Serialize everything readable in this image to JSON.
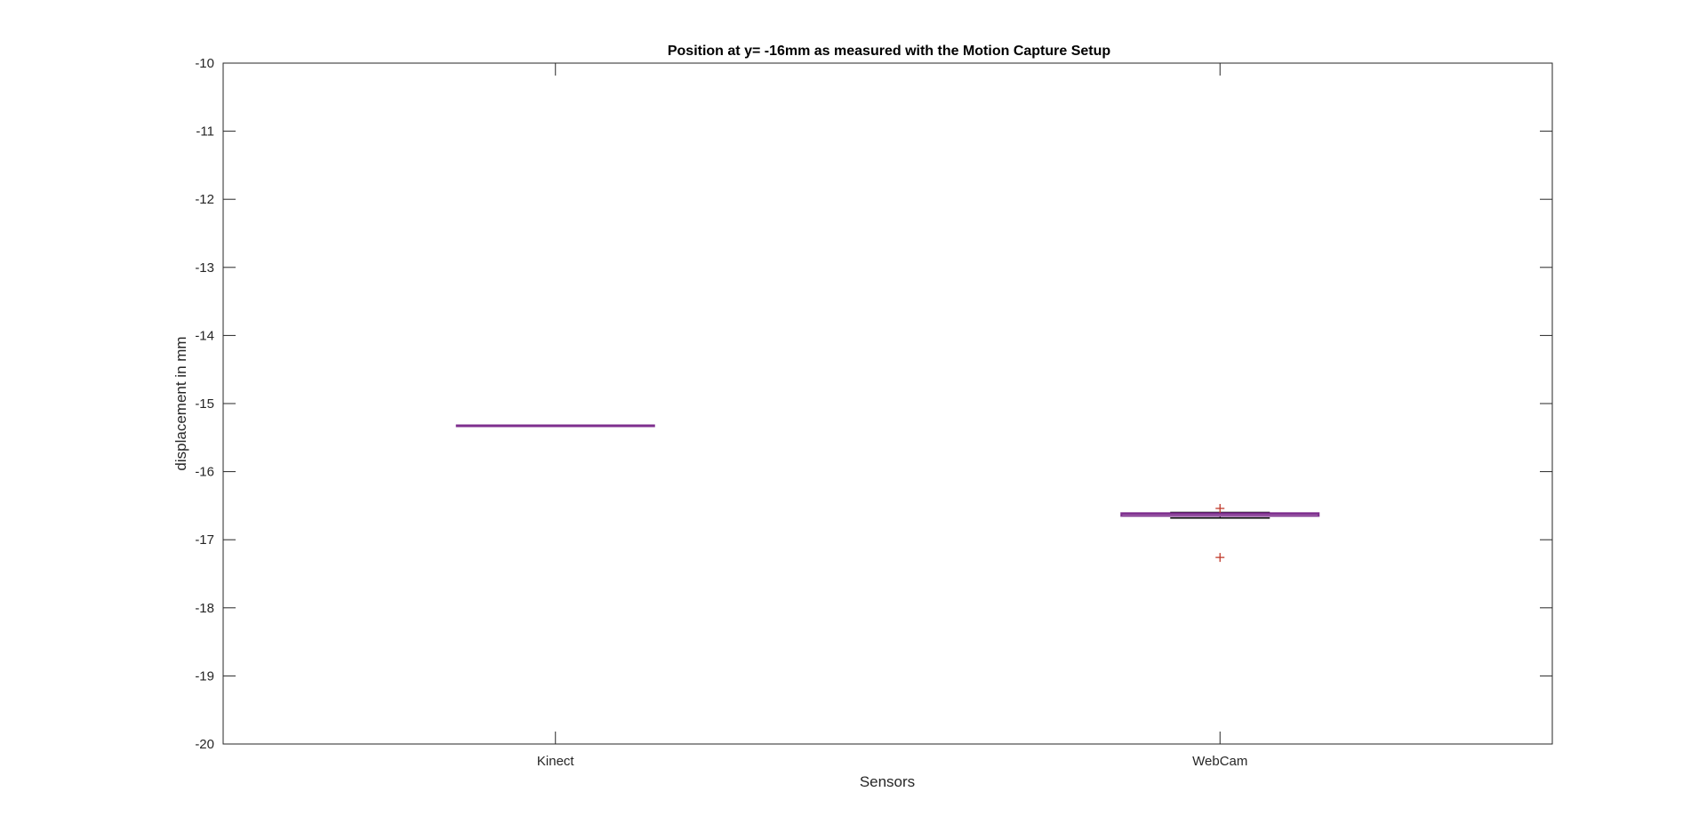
{
  "chart_data": {
    "type": "box",
    "title": "Position at y= -16mm as measured with the Motion Capture Setup",
    "xlabel": "Sensors",
    "ylabel": "displacement in mm",
    "categories": [
      "Kinect",
      "WebCam"
    ],
    "ylim": [
      -20,
      -10
    ],
    "yticks": [
      "-10",
      "-11",
      "-12",
      "-13",
      "-14",
      "-15",
      "-16",
      "-17",
      "-18",
      "-19",
      "-20"
    ],
    "boxes": [
      {
        "category": "Kinect",
        "whisker_low": -15.32,
        "q1": -15.32,
        "median": -15.32,
        "q3": -15.32,
        "whisker_high": -15.32,
        "outliers": []
      },
      {
        "category": "WebCam",
        "whisker_low": -16.68,
        "q1": -16.65,
        "median": -16.62,
        "q3": -16.61,
        "whisker_high": -16.6,
        "outliers": [
          -16.54,
          -17.26
        ]
      }
    ],
    "grid": false,
    "colors": {
      "box": "#7E2F8E",
      "median": "#000080",
      "whisker": "#000000",
      "outlier": "#C0392B",
      "axes": "#262626"
    }
  }
}
